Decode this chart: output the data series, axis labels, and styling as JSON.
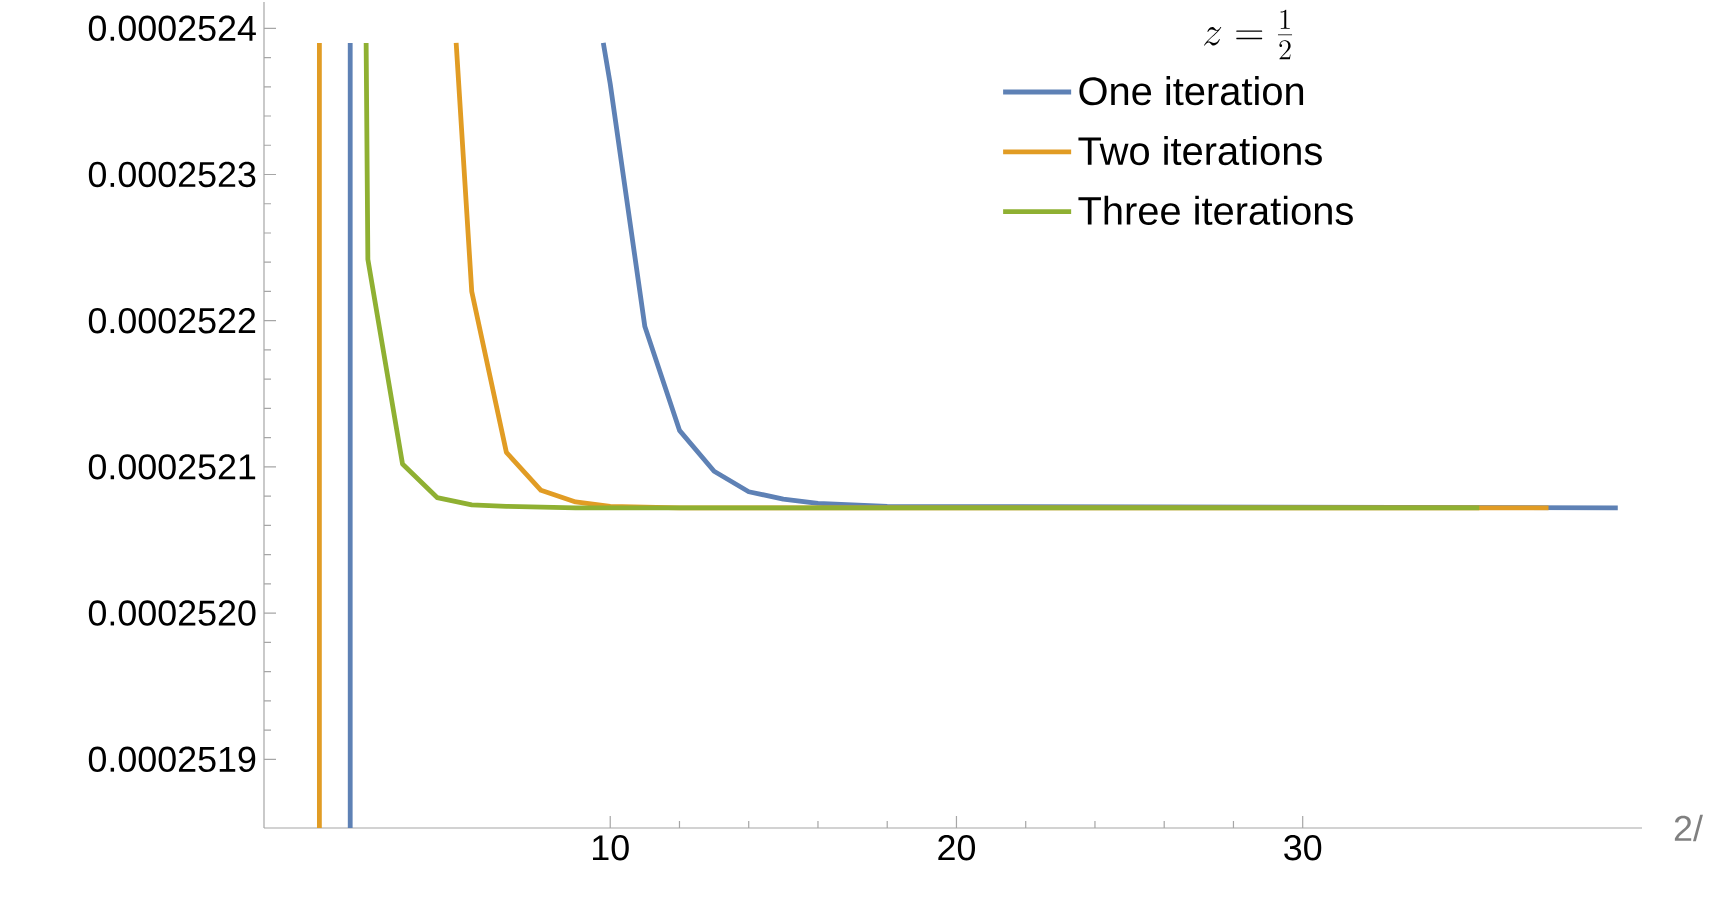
{
  "chart_data": {
    "type": "line",
    "legend_title": "z = \\frac{1}{2}",
    "xlabel": "2/",
    "series": [
      {
        "name": "One iteration",
        "color": "#5e81b5",
        "x": [
          2.49,
          2.49,
          null,
          9.8,
          10,
          11,
          12,
          13,
          14,
          15,
          16,
          18,
          39.1
        ],
        "values": [
          0.000251853,
          0.00025239,
          null,
          0.00025239,
          0.000252362,
          0.000252196,
          0.000252125,
          0.000252097,
          0.000252083,
          0.000252078,
          0.000252075,
          0.000252073,
          0.000252072
        ]
      },
      {
        "name": "Two iterations",
        "color": "#e19c24",
        "x": [
          1.6,
          1.6,
          null,
          5.55,
          6,
          7,
          8,
          9,
          10,
          12,
          20,
          37.1
        ],
        "values": [
          0.000251853,
          0.00025239,
          null,
          0.00025239,
          0.00025222,
          0.00025211,
          0.000252084,
          0.000252076,
          0.000252073,
          0.000252072,
          0.000252072,
          0.000252072
        ]
      },
      {
        "name": "Three iterations",
        "color": "#8fb032",
        "x": [
          2.95,
          3,
          4,
          5,
          6,
          7,
          9,
          20,
          35.1
        ],
        "values": [
          0.00025239,
          0.000252242,
          0.000252102,
          0.000252079,
          0.000252074,
          0.000252073,
          0.000252072,
          0.000252072,
          0.000252072
        ]
      }
    ],
    "xlim": [
      0,
      39.8
    ],
    "ylim": [
      0.000251853,
      0.000252418
    ],
    "xticks": [
      10,
      20,
      30
    ],
    "yticks": [
      {
        "value": 0.0002519,
        "label": "0.0002519"
      },
      {
        "value": 0.000252,
        "label": "0.0002520"
      },
      {
        "value": 0.0002521,
        "label": "0.0002521"
      },
      {
        "value": 0.0002522,
        "label": "0.0002522"
      },
      {
        "value": 0.0002523,
        "label": "0.0002523"
      },
      {
        "value": 0.0002524,
        "label": "0.0002524"
      }
    ],
    "legend": "top right",
    "grid": false,
    "marker": "none",
    "line_style": "solid"
  }
}
